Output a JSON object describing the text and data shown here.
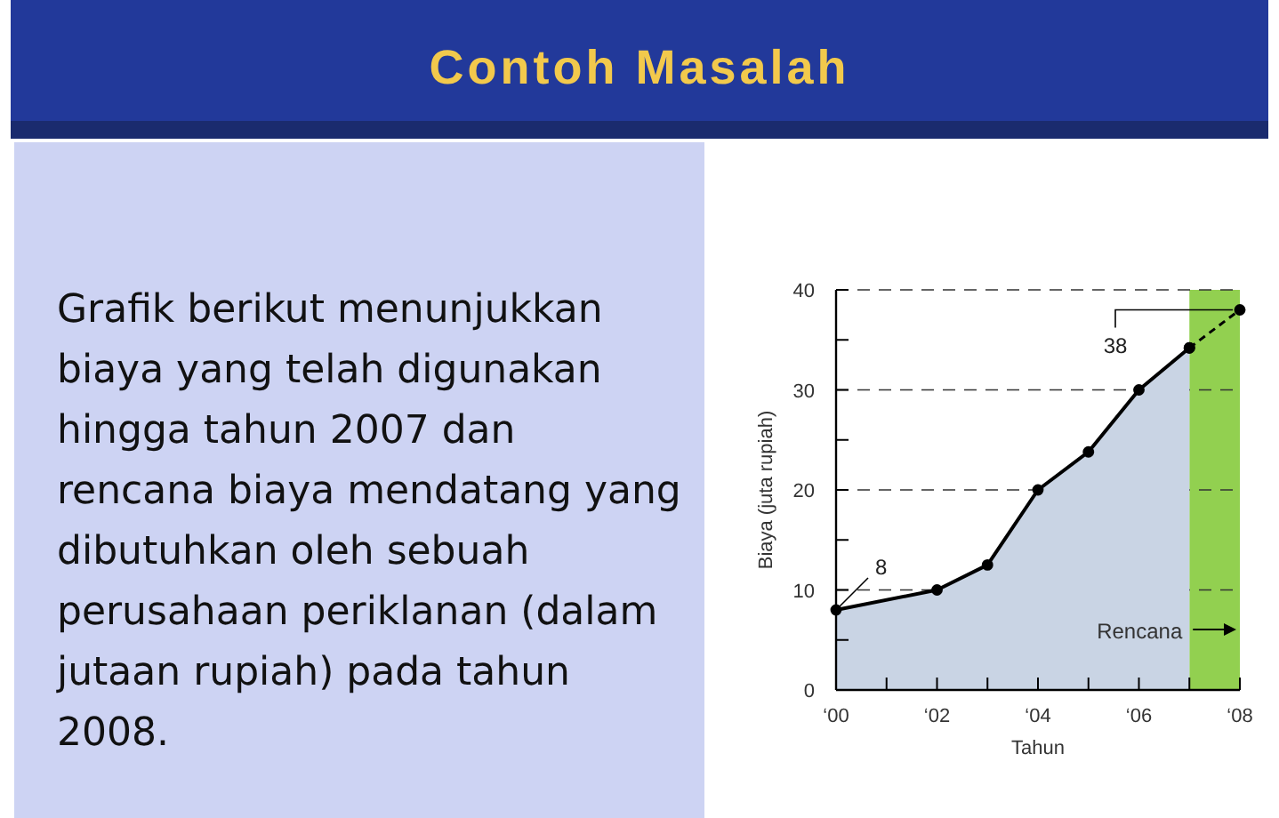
{
  "chart_data": {
    "type": "area",
    "title": "Contoh Masalah",
    "subtitle": "Grafik berikut menunjukkan biaya yang telah digunakan hingga tahun 2007 dan rencana biaya mendatang yang dibutuhkan oleh sebuah perusahaan periklanan (dalam jutaan rupiah) pada tahun 2008.",
    "xlabel": "Tahun",
    "ylabel": "Biaya (juta rupiah)",
    "categories": [
      "‘00",
      null,
      "‘02",
      null,
      "‘04",
      null,
      "‘06",
      null,
      "‘08"
    ],
    "ylim": [
      0,
      40
    ],
    "yticks": [
      0,
      {
        "value": 5,
        "label": null
      },
      10,
      {
        "value": 15,
        "label": null
      },
      20,
      {
        "value": 25,
        "label": null
      },
      30,
      {
        "value": 35,
        "label": null
      },
      40
    ],
    "grid": "y",
    "marker": "circle",
    "series": [
      {
        "type": "area",
        "name": "Rencana",
        "marker": "none",
        "color": "#92d050",
        "values": [
          null,
          null,
          null,
          null,
          null,
          null,
          null,
          40,
          40
        ]
      },
      {
        "color": "#c9d4e4",
        "values": [
          8,
          null,
          10,
          12.5,
          20,
          23.8,
          30,
          34.2,
          null
        ],
        "line_style": "solid"
      },
      {
        "type": "line",
        "color": "#000000",
        "values": [
          null,
          null,
          null,
          null,
          null,
          null,
          null,
          34.2,
          38
        ],
        "line_style": "dashed"
      }
    ],
    "annotations": [
      {
        "text": "8",
        "x": "‘00",
        "y": 8
      },
      {
        "text": "38",
        "x": "‘08",
        "y": 38
      }
    ]
  }
}
